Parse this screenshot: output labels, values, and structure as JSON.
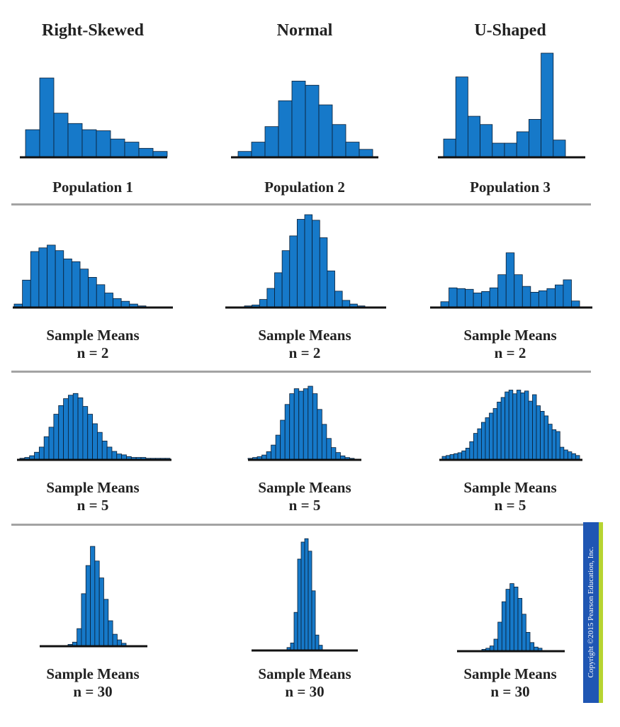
{
  "columns": [
    "Right-Skewed",
    "Normal",
    "U-Shaped"
  ],
  "copyright": "Copyright ©2015 Pearson Education, Inc.",
  "colors": {
    "bar": "#1679c9",
    "bar_edge": "#0a1d33",
    "baseline": "#111111",
    "separator": "#a3a3a3",
    "copyright_bg": "#1f56b3",
    "copyright_strip": "#b7d431"
  },
  "chart_data": [
    {
      "type": "bar",
      "row_label": "Population 1",
      "column": "Right-Skewed",
      "values": [
        0.26,
        0.76,
        0.42,
        0.32,
        0.26,
        0.25,
        0.17,
        0.14,
        0.08,
        0.05
      ]
    },
    {
      "type": "bar",
      "row_label": "Population 2",
      "column": "Normal",
      "values": [
        0.05,
        0.14,
        0.29,
        0.54,
        0.73,
        0.69,
        0.5,
        0.31,
        0.14,
        0.07
      ]
    },
    {
      "type": "bar",
      "row_label": "Population 3",
      "column": "U-Shaped",
      "values": [
        0.17,
        0.77,
        0.39,
        0.31,
        0.13,
        0.13,
        0.24,
        0.36,
        1.0,
        0.16
      ]
    },
    {
      "type": "bar",
      "row_label": "Sample Means\nn = 2",
      "column": "Right-Skewed",
      "values": [
        0.03,
        0.29,
        0.6,
        0.64,
        0.67,
        0.61,
        0.52,
        0.49,
        0.41,
        0.32,
        0.24,
        0.15,
        0.09,
        0.06,
        0.03,
        0.01
      ]
    },
    {
      "type": "bar",
      "row_label": "Sample Means\nn = 2",
      "column": "Normal",
      "values": [
        0.01,
        0.02,
        0.08,
        0.2,
        0.37,
        0.61,
        0.77,
        0.95,
        1.0,
        0.94,
        0.75,
        0.39,
        0.17,
        0.07,
        0.03,
        0.01
      ]
    },
    {
      "type": "bar",
      "row_label": "Sample Means\nn = 2",
      "column": "U-Shaped",
      "values": [
        0.07,
        0.26,
        0.25,
        0.24,
        0.19,
        0.21,
        0.26,
        0.44,
        0.74,
        0.44,
        0.28,
        0.2,
        0.22,
        0.25,
        0.3,
        0.37,
        0.08
      ]
    },
    {
      "type": "bar",
      "row_label": "Sample Means\nn = 5",
      "column": "Right-Skewed",
      "values": [
        0.01,
        0.02,
        0.04,
        0.08,
        0.14,
        0.26,
        0.37,
        0.52,
        0.62,
        0.7,
        0.74,
        0.76,
        0.71,
        0.61,
        0.52,
        0.41,
        0.31,
        0.21,
        0.14,
        0.09,
        0.06,
        0.05,
        0.03,
        0.02,
        0.02,
        0.02,
        0.01,
        0.01,
        0.01,
        0.01,
        0.01
      ]
    },
    {
      "type": "bar",
      "row_label": "Sample Means\nn = 5",
      "column": "Normal",
      "values": [
        0.01,
        0.02,
        0.03,
        0.05,
        0.09,
        0.17,
        0.29,
        0.47,
        0.66,
        0.79,
        0.85,
        0.82,
        0.85,
        0.88,
        0.79,
        0.6,
        0.42,
        0.25,
        0.14,
        0.08,
        0.04,
        0.02,
        0.01
      ]
    },
    {
      "type": "bar",
      "row_label": "Sample Means\nn = 5",
      "column": "U-Shaped",
      "values": [
        0.03,
        0.04,
        0.05,
        0.06,
        0.07,
        0.09,
        0.12,
        0.19,
        0.28,
        0.33,
        0.4,
        0.45,
        0.5,
        0.55,
        0.62,
        0.67,
        0.73,
        0.75,
        0.71,
        0.75,
        0.72,
        0.74,
        0.63,
        0.7,
        0.58,
        0.52,
        0.47,
        0.38,
        0.32,
        0.3,
        0.13,
        0.1,
        0.08,
        0.06,
        0.04
      ]
    },
    {
      "type": "bar",
      "row_label": "Sample Means\nn = 30",
      "column": "Right-Skewed",
      "values": [
        0.01,
        0.03,
        0.15,
        0.46,
        0.71,
        0.88,
        0.75,
        0.6,
        0.41,
        0.22,
        0.1,
        0.05,
        0.02
      ]
    },
    {
      "type": "bar",
      "row_label": "Sample Means\nn = 30",
      "column": "Normal",
      "values": [
        0.02,
        0.06,
        0.33,
        0.8,
        0.95,
        0.98,
        0.87,
        0.52,
        0.13,
        0.04
      ]
    },
    {
      "type": "bar",
      "row_label": "Sample Means\nn = 30",
      "column": "U-Shaped",
      "values": [
        0.01,
        0.02,
        0.04,
        0.1,
        0.25,
        0.43,
        0.54,
        0.59,
        0.56,
        0.46,
        0.32,
        0.16,
        0.07,
        0.03,
        0.02
      ]
    }
  ]
}
